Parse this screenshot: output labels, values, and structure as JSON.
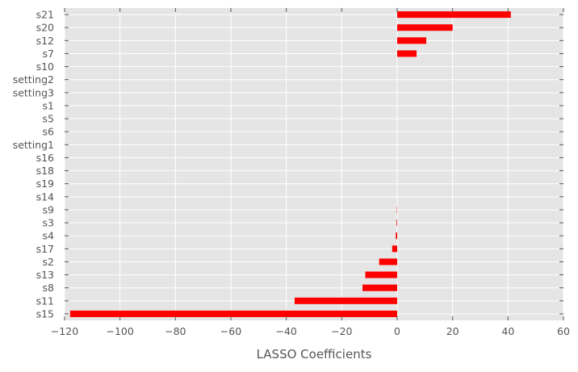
{
  "chart_data": {
    "type": "bar",
    "orientation": "horizontal",
    "title": "",
    "xlabel": "LASSO Coefficients",
    "ylabel": "",
    "xlim": [
      -120,
      60
    ],
    "xticks": [
      -120,
      -100,
      -80,
      -60,
      -40,
      -20,
      0,
      20,
      40,
      60
    ],
    "xtick_labels": [
      "−120",
      "−100",
      "−80",
      "−60",
      "−40",
      "−20",
      "0",
      "20",
      "40",
      "60"
    ],
    "grid": true,
    "background": "#e5e5e5",
    "bar_color": "#ff0000",
    "categories": [
      "s21",
      "s20",
      "s12",
      "s7",
      "s10",
      "setting2",
      "setting3",
      "s1",
      "s5",
      "s6",
      "setting1",
      "s16",
      "s18",
      "s19",
      "s14",
      "s9",
      "s3",
      "s4",
      "s17",
      "s2",
      "s13",
      "s8",
      "s11",
      "s15"
    ],
    "values": [
      41,
      20,
      10.5,
      7,
      0,
      0,
      0,
      0,
      0,
      0,
      0,
      0,
      0,
      0,
      0,
      -0.1,
      -0.2,
      -0.5,
      -1.8,
      -6.5,
      -11.5,
      -12.5,
      -37,
      -118
    ]
  }
}
